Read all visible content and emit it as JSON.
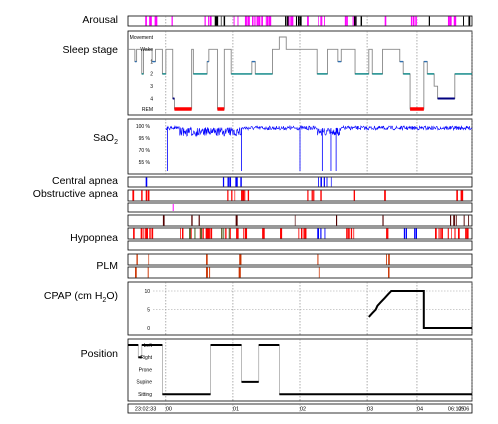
{
  "labels": {
    "arousal": "Arousal",
    "sleep_stage": "Sleep stage",
    "sao2": "SaO",
    "sao2_sub": "2",
    "central_apnea": "Central apnea",
    "obstructive_apnea": "Obstructive apnea",
    "hypopnea": "Hypopnea",
    "plm": "PLM",
    "cpap": "CPAP (cm H",
    "cpap_sub": "2",
    "cpap_end": "O)",
    "position": "Position"
  },
  "chart_data": {
    "type": "table",
    "sleep_stage_levels": [
      "Movement",
      "Wake",
      "1",
      "2",
      "3",
      "4",
      "REM"
    ],
    "sao2_ticks": [
      "100 %",
      "95 %",
      "70 %",
      "55 %"
    ],
    "cpap_ticks": [
      "10",
      "5",
      "0"
    ],
    "position_levels": [
      "Left",
      "Right",
      "Prone",
      "Supine",
      "Sitting"
    ],
    "time_labels": [
      "23:02:33",
      "00",
      "01",
      "02",
      "03",
      "04",
      "05",
      "06:12:06"
    ],
    "cpap_profile": [
      {
        "t": 0.7,
        "v": 3
      },
      {
        "t": 0.71,
        "v": 4
      },
      {
        "t": 0.72,
        "v": 5
      },
      {
        "t": 0.725,
        "v": 6
      },
      {
        "t": 0.735,
        "v": 7
      },
      {
        "t": 0.745,
        "v": 8
      },
      {
        "t": 0.755,
        "v": 9
      },
      {
        "t": 0.765,
        "v": 10
      },
      {
        "t": 0.86,
        "v": 10
      },
      {
        "t": 0.86,
        "v": 0
      },
      {
        "t": 1.0,
        "v": 0
      }
    ],
    "position_profile": [
      {
        "t": 0.0,
        "p": "Left"
      },
      {
        "t": 0.03,
        "p": "Right"
      },
      {
        "t": 0.04,
        "p": "Left"
      },
      {
        "t": 0.1,
        "p": "Sitting"
      },
      {
        "t": 0.24,
        "p": "Left"
      },
      {
        "t": 0.33,
        "p": "Supine"
      },
      {
        "t": 0.38,
        "p": "Left"
      },
      {
        "t": 0.44,
        "p": "Sitting"
      },
      {
        "t": 1.0,
        "p": "Sitting"
      }
    ]
  },
  "colors": {
    "arousal": "#ff00ff",
    "rem": "#ff0000",
    "stage2": "#008080",
    "stage4": "#000080",
    "sao2": "#0000ff",
    "obstructive": "#ff0000",
    "central": "#0000ff",
    "plm": "#cc3300"
  }
}
